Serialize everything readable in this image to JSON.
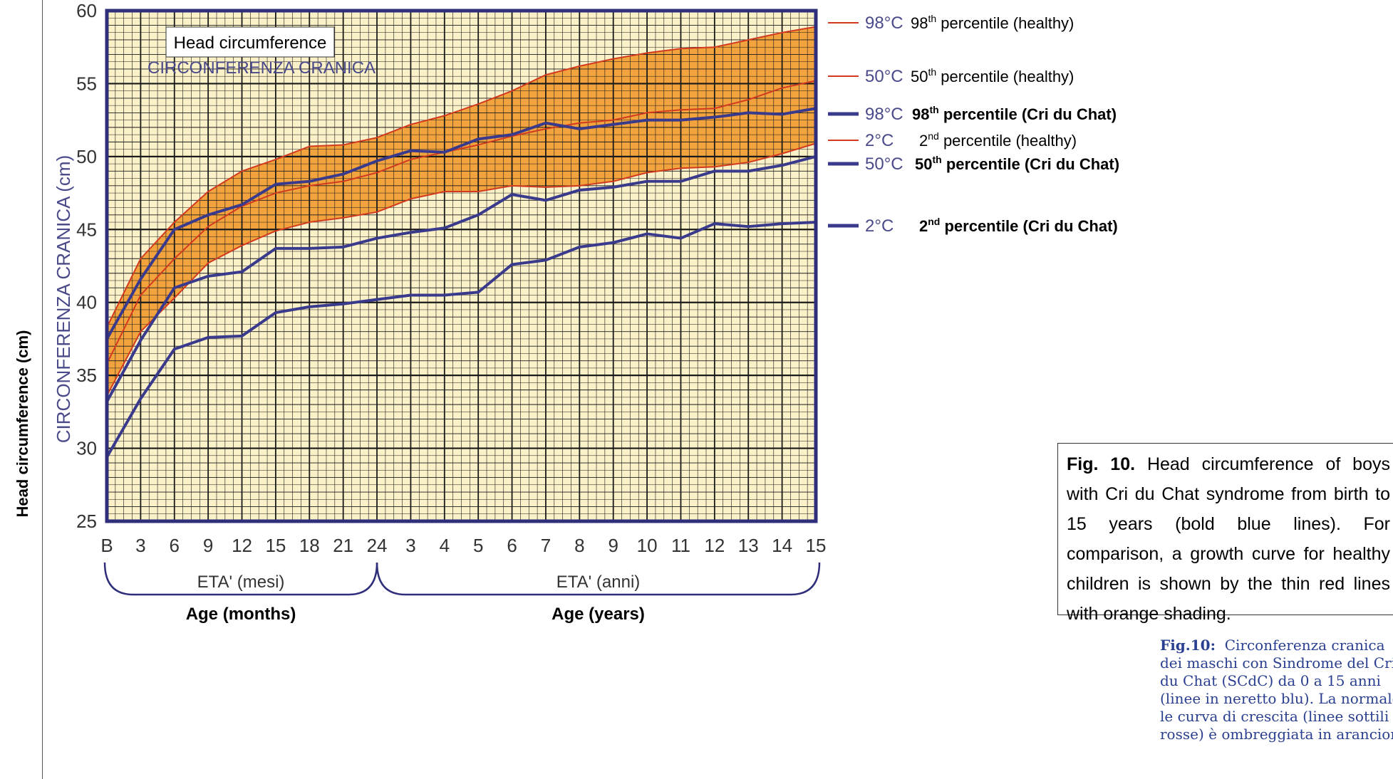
{
  "figure": {
    "y_axis_outer_label": "Head circumference (cm)",
    "inset_title_en": "Head circumference",
    "inset_title_it": "CIRCONFERENZA CRANICA",
    "y_axis_inner_label": "CIRCONFERENZA CRANICA (cm)",
    "bracket_label_months_it": "ETA' (mesi)",
    "bracket_label_years_it": "ETA' (anni)",
    "bracket_label_months_en": "Age (months)",
    "bracket_label_years_en": "Age (years)",
    "caption_en_prefix": "Fig. 10.",
    "caption_en_body": "Head circumference of boys with Cri du Chat syndrome from birth to 15 years (bold blue lines). For comparison, a growth curve for healthy children is shown by the thin red lines with orange shading.",
    "caption_it_prefix": "Fig.10:",
    "caption_it_lines": [
      "Circonferenza cranica",
      "dei maschi con Sindrome del Cri",
      "du Chat (SCdC) da 0 a 15 anni",
      "(linee in neretto blu). La normale",
      "le curva di crescita (linee sottili",
      "rosse) è ombreggiata in arancione."
    ]
  },
  "legend": [
    {
      "code": "98°C",
      "sup": "th",
      "num": "98",
      "text": " percentile (healthy)",
      "bold": false,
      "color": "#d23a1f"
    },
    {
      "code": "50°C",
      "sup": "th",
      "num": "50",
      "text": " percentile (healthy)",
      "bold": false,
      "color": "#d23a1f"
    },
    {
      "code": "98°C",
      "sup": "th",
      "num": "98",
      "text": " percentile (Cri du Chat)",
      "bold": true,
      "color": "#3a3a8c"
    },
    {
      "code": "2°C",
      "sup": "nd",
      "num": "2",
      "text": " percentile (healthy)",
      "bold": false,
      "color": "#d23a1f"
    },
    {
      "code": "50°C",
      "sup": "th",
      "num": "50",
      "text": " percentile (Cri du Chat)",
      "bold": true,
      "color": "#3a3a8c"
    },
    {
      "code": "2°C",
      "sup": "nd",
      "num": "2",
      "text": " percentile (Cri du Chat)",
      "bold": true,
      "color": "#3a3a8c"
    }
  ],
  "chart_data": {
    "type": "line",
    "categories": [
      "B",
      "3",
      "6",
      "9",
      "12",
      "15",
      "18",
      "21",
      "24",
      "3",
      "4",
      "5",
      "6",
      "7",
      "8",
      "9",
      "10",
      "11",
      "12",
      "13",
      "14",
      "15"
    ],
    "ylim": [
      25,
      60
    ],
    "yticks": [
      25,
      30,
      35,
      40,
      45,
      50,
      55,
      60
    ],
    "grid": true,
    "band_fill": "#f29a2e",
    "series": [
      {
        "code": "98°C",
        "group": "healthy",
        "color": "#d23a1f",
        "values": [
          38.3,
          43.0,
          45.5,
          47.6,
          49.0,
          49.8,
          50.7,
          50.8,
          51.3,
          52.2,
          52.8,
          53.6,
          54.5,
          55.6,
          56.2,
          56.7,
          57.1,
          57.4,
          57.5,
          58.0,
          58.5,
          58.9
        ]
      },
      {
        "code": "50°C",
        "group": "healthy",
        "color": "#d23a1f",
        "values": [
          35.8,
          40.5,
          43.0,
          45.2,
          46.6,
          47.5,
          48.0,
          48.3,
          48.9,
          49.8,
          50.3,
          50.8,
          51.4,
          51.9,
          52.3,
          52.5,
          53.0,
          53.2,
          53.3,
          53.9,
          54.7,
          55.2
        ]
      },
      {
        "code": "2°C",
        "group": "healthy",
        "color": "#d23a1f",
        "values": [
          33.6,
          38.0,
          40.3,
          42.7,
          43.9,
          44.9,
          45.5,
          45.8,
          46.2,
          47.1,
          47.6,
          47.6,
          48.0,
          47.9,
          48.0,
          48.3,
          48.9,
          49.2,
          49.3,
          49.6,
          50.2,
          50.9
        ]
      },
      {
        "code": "98°C",
        "group": "Cri du Chat",
        "color": "#3a3a8c",
        "values": [
          37.5,
          41.6,
          45.0,
          46.0,
          46.7,
          48.1,
          48.3,
          48.8,
          49.7,
          50.4,
          50.3,
          51.2,
          51.5,
          52.3,
          51.9,
          52.2,
          52.5,
          52.5,
          52.7,
          53.0,
          52.9,
          53.3
        ]
      },
      {
        "code": "50°C",
        "group": "Cri du Chat",
        "color": "#3a3a8c",
        "values": [
          33.2,
          37.4,
          41.0,
          41.8,
          42.1,
          43.7,
          43.7,
          43.8,
          44.4,
          44.8,
          45.1,
          46.0,
          47.4,
          47.0,
          47.7,
          47.9,
          48.3,
          48.3,
          49.0,
          49.0,
          49.4,
          50.0
        ]
      },
      {
        "code": "2°C",
        "group": "Cri du Chat",
        "color": "#3a3a8c",
        "values": [
          29.4,
          33.4,
          36.8,
          37.6,
          37.7,
          39.3,
          39.7,
          39.9,
          40.2,
          40.5,
          40.5,
          40.7,
          42.6,
          42.9,
          43.8,
          44.1,
          44.7,
          44.4,
          45.4,
          45.2,
          45.4,
          45.5
        ]
      }
    ]
  }
}
